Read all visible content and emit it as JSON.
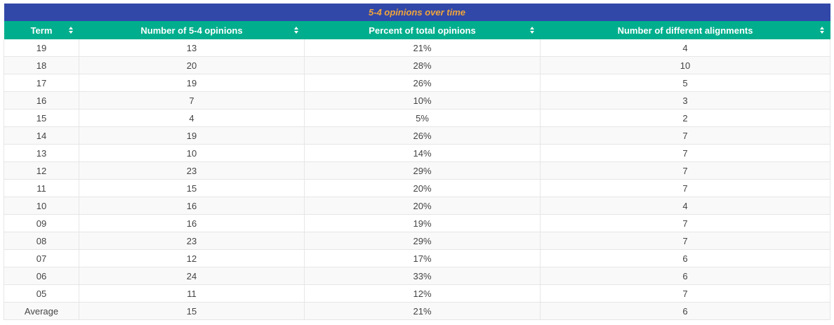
{
  "table": {
    "title": "5-4 opinions over time",
    "columns": [
      "Term",
      "Number of 5-4 opinions",
      "Percent of total opinions",
      "Number of different alignments"
    ],
    "rows": [
      [
        "19",
        "13",
        "21%",
        "4"
      ],
      [
        "18",
        "20",
        "28%",
        "10"
      ],
      [
        "17",
        "19",
        "26%",
        "5"
      ],
      [
        "16",
        "7",
        "10%",
        "3"
      ],
      [
        "15",
        "4",
        "5%",
        "2"
      ],
      [
        "14",
        "19",
        "26%",
        "7"
      ],
      [
        "13",
        "10",
        "14%",
        "7"
      ],
      [
        "12",
        "23",
        "29%",
        "7"
      ],
      [
        "11",
        "15",
        "20%",
        "7"
      ],
      [
        "10",
        "16",
        "20%",
        "4"
      ],
      [
        "09",
        "16",
        "19%",
        "7"
      ],
      [
        "08",
        "23",
        "29%",
        "7"
      ],
      [
        "07",
        "12",
        "17%",
        "6"
      ],
      [
        "06",
        "24",
        "33%",
        "6"
      ],
      [
        "05",
        "11",
        "12%",
        "7"
      ],
      [
        "Average",
        "15",
        "21%",
        "6"
      ]
    ]
  },
  "colors": {
    "title_bg": "#3248a8",
    "title_text": "#f0a53b",
    "header_bg": "#00ae8d",
    "header_text": "#ffffff"
  },
  "icons": {
    "sort": "sort-icon"
  }
}
